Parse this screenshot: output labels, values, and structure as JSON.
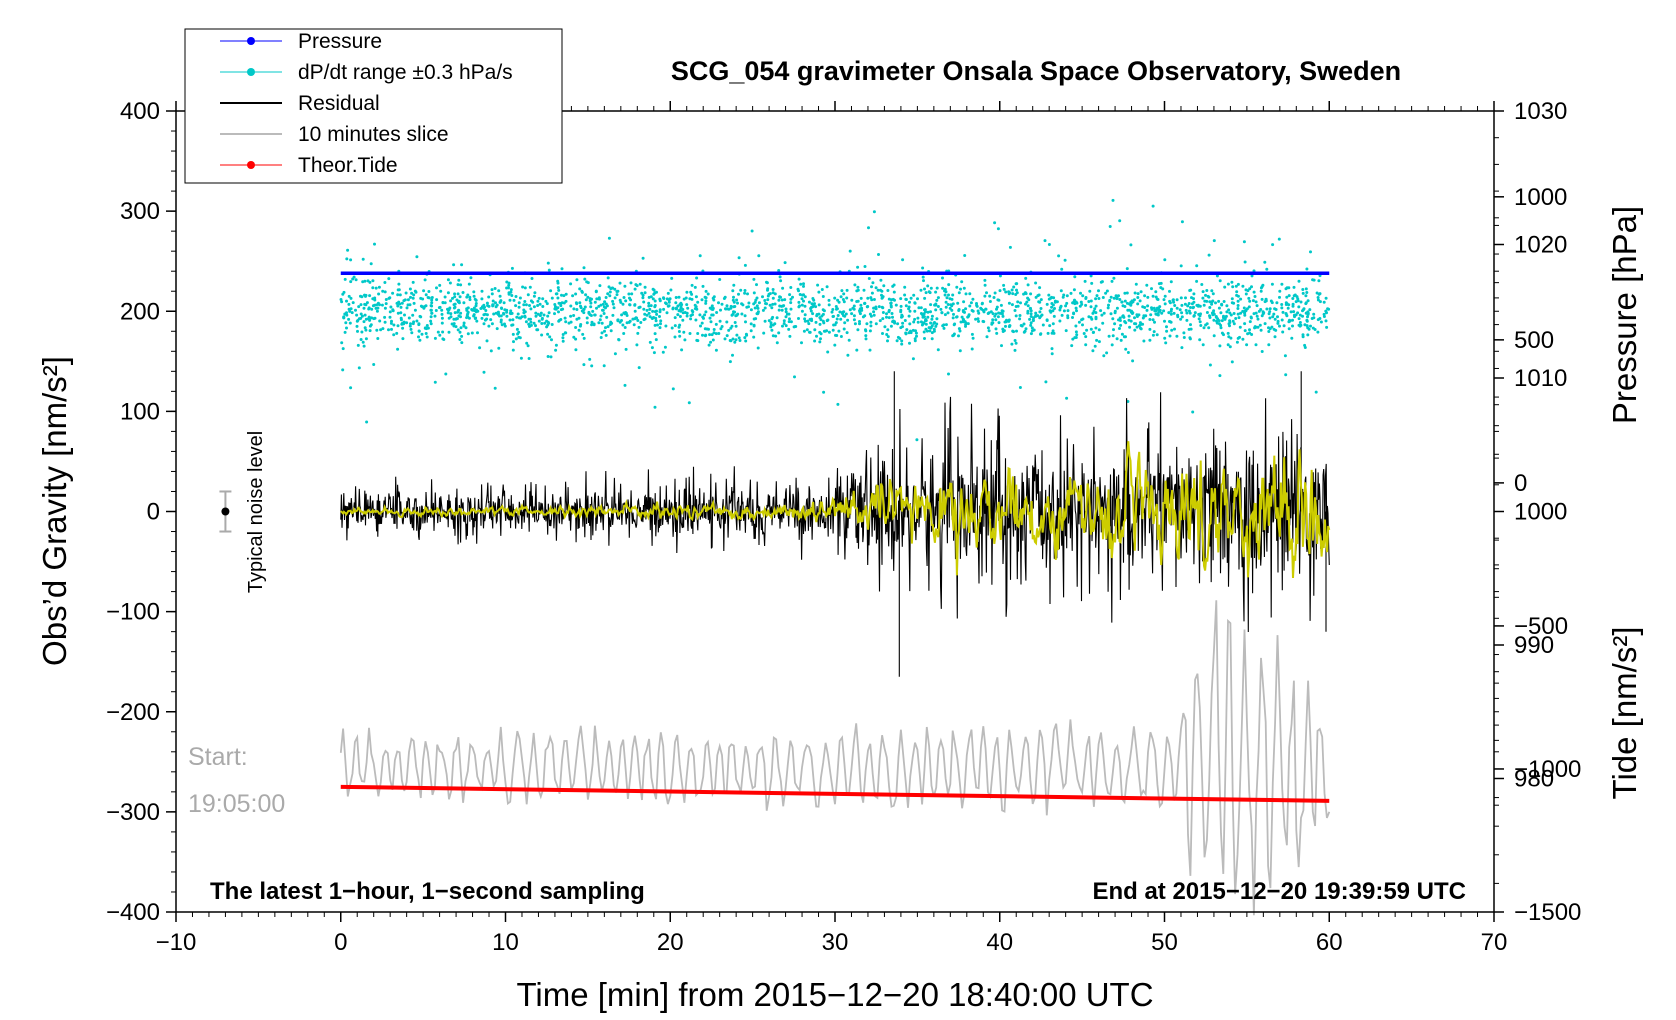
{
  "chart_data": {
    "type": "line",
    "title": "SCG_054 gravimeter Onsala Space Observatory, Sweden",
    "xlabel": "Time [min] from 2015−12−20 18:40:00 UTC",
    "ylabel_left": "Obs’d Gravity [nm/s²]",
    "ylabel_right_pressure": "Pressure [hPa]",
    "ylabel_right_tide": "Tide [nm/s²]",
    "xlim": [
      -10,
      70
    ],
    "ylim": [
      -400,
      400
    ],
    "x_ticks": [
      {
        "v": -10,
        "label": "−10"
      },
      {
        "v": 0,
        "label": "0"
      },
      {
        "v": 10,
        "label": "10"
      },
      {
        "v": 20,
        "label": "20"
      },
      {
        "v": 30,
        "label": "30"
      },
      {
        "v": 40,
        "label": "40"
      },
      {
        "v": 50,
        "label": "50"
      },
      {
        "v": 60,
        "label": "60"
      },
      {
        "v": 70,
        "label": "70"
      }
    ],
    "y_ticks_left": [
      {
        "v": 400,
        "label": "400"
      },
      {
        "v": 300,
        "label": "300"
      },
      {
        "v": 200,
        "label": "200"
      },
      {
        "v": 100,
        "label": "100"
      },
      {
        "v": 0,
        "label": "0"
      },
      {
        "v": -100,
        "label": "−100"
      },
      {
        "v": -200,
        "label": "−200"
      },
      {
        "v": -300,
        "label": "−300"
      },
      {
        "v": -400,
        "label": "−400"
      }
    ],
    "pressure_axis": {
      "range": [
        970,
        1030
      ],
      "ticks": [
        {
          "v": 1030,
          "label": "1030"
        },
        {
          "v": 1020,
          "label": "1020"
        },
        {
          "v": 1010,
          "label": "1010"
        },
        {
          "v": 1000,
          "label": "1000"
        },
        {
          "v": 990,
          "label": "990"
        },
        {
          "v": 980,
          "label": "980"
        }
      ]
    },
    "tide_axis": {
      "range": [
        -1500,
        1300
      ],
      "ticks": [
        {
          "v": 1000,
          "label": "1000"
        },
        {
          "v": 500,
          "label": "500"
        },
        {
          "v": 0,
          "label": "0"
        },
        {
          "v": -500,
          "label": "−500"
        },
        {
          "v": -1000,
          "label": "−1000"
        },
        {
          "v": -1500,
          "label": "−1500"
        }
      ]
    },
    "legend": [
      {
        "label": "Pressure",
        "color": "#0000ff",
        "marker": true
      },
      {
        "label": "dP/dt range ±0.3 hPa/s",
        "color": "#00c8c8",
        "marker": true
      },
      {
        "label": "Residual",
        "color": "#000000",
        "marker": false
      },
      {
        "label": "10 minutes slice",
        "color": "#bbbbbb",
        "marker": false
      },
      {
        "label": "Theor.Tide",
        "color": "#ff0000",
        "marker": true
      }
    ],
    "series": [
      {
        "name": "Pressure",
        "color": "#0000ff",
        "x": [
          0,
          60
        ],
        "y": [
          238,
          238
        ]
      },
      {
        "name": "Theor.Tide",
        "color": "#ff0000",
        "x": [
          0,
          60
        ],
        "y": [
          -275,
          -289
        ]
      },
      {
        "name": "dP/dt range ±0.3 hPa/s",
        "color": "#00c8c8",
        "center": 200,
        "spread": 20,
        "x_range": [
          0,
          60
        ]
      },
      {
        "name": "Residual",
        "color": "#000000",
        "x_range": [
          0,
          60
        ],
        "amplitude_envelope": [
          {
            "x": 0,
            "a": 18
          },
          {
            "x": 30,
            "a": 25
          },
          {
            "x": 33.5,
            "a": 60
          },
          {
            "x": 45,
            "a": 55
          },
          {
            "x": 60,
            "a": 70
          }
        ],
        "spikes": [
          {
            "x": 33.9,
            "y": -165
          },
          {
            "x": 33.6,
            "y": 140
          },
          {
            "x": 58.3,
            "y": 140
          },
          {
            "x": 59.8,
            "y": -120
          }
        ]
      },
      {
        "name": "smoothed residual",
        "color": "#cccc00",
        "x_range": [
          0,
          60
        ],
        "amplitude_envelope": [
          {
            "x": 0,
            "a": 2
          },
          {
            "x": 28,
            "a": 6
          },
          {
            "x": 33,
            "a": 20
          },
          {
            "x": 44,
            "a": 25
          },
          {
            "x": 60,
            "a": 45
          }
        ]
      },
      {
        "name": "10 minutes slice",
        "color": "#bbbbbb",
        "x_range": [
          0,
          60
        ],
        "center": -255,
        "amplitude_envelope": [
          {
            "x": 0,
            "a": 30
          },
          {
            "x": 50,
            "a": 40
          },
          {
            "x": 53,
            "a": 150
          },
          {
            "x": 60,
            "a": 70
          }
        ]
      }
    ],
    "noise_indicator": {
      "x": -7,
      "y": 0,
      "err": 20,
      "label": "Typical noise level"
    },
    "annotations": {
      "start_label": "Start:",
      "start_time": "19:05:00",
      "bottom_left": "The latest 1−hour, 1−second sampling",
      "bottom_right": "End at 2015−12−20 19:39:59 UTC"
    },
    "grid": false,
    "legend_position": "top-left"
  }
}
